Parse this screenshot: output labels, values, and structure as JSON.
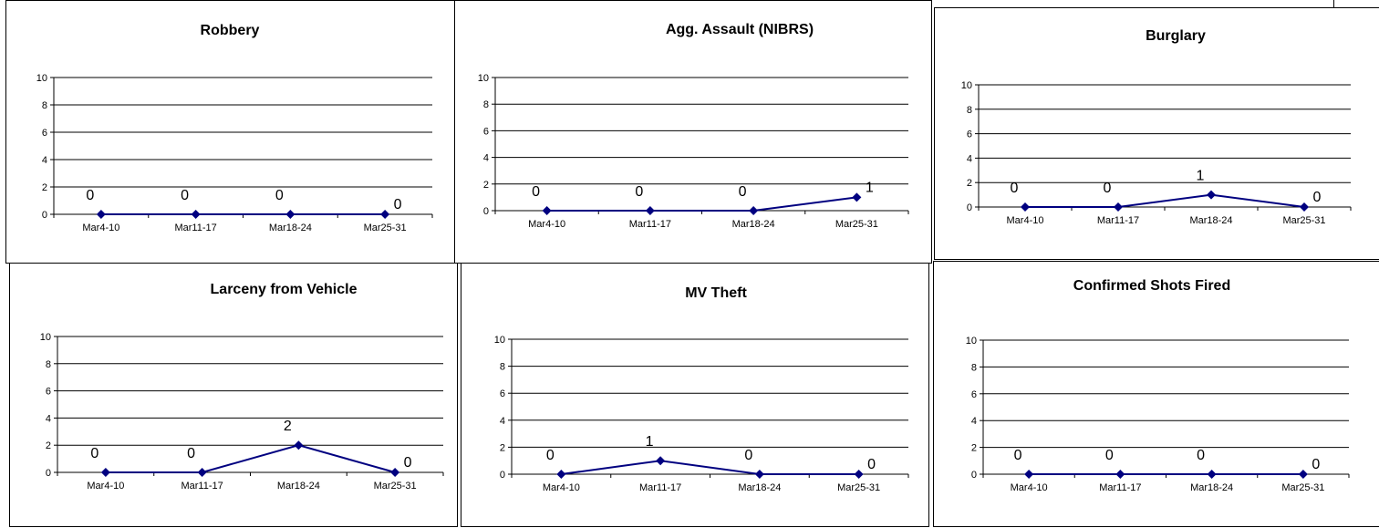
{
  "chart_data": [
    {
      "type": "line",
      "title": "Robbery",
      "categories": [
        "Mar4-10",
        "Mar11-17",
        "Mar18-24",
        "Mar25-31"
      ],
      "values": [
        0,
        0,
        0,
        0
      ],
      "ylim": [
        0,
        10
      ],
      "yticks": [
        0,
        2,
        4,
        6,
        8,
        10
      ],
      "grid": true,
      "color": "#000080"
    },
    {
      "type": "line",
      "title": "Agg. Assault (NIBRS)",
      "categories": [
        "Mar4-10",
        "Mar11-17",
        "Mar18-24",
        "Mar25-31"
      ],
      "values": [
        0,
        0,
        0,
        1
      ],
      "ylim": [
        0,
        10
      ],
      "yticks": [
        0,
        2,
        4,
        6,
        8,
        10
      ],
      "grid": true,
      "color": "#000080"
    },
    {
      "type": "line",
      "title": "Burglary",
      "categories": [
        "Mar4-10",
        "Mar11-17",
        "Mar18-24",
        "Mar25-31"
      ],
      "values": [
        0,
        0,
        1,
        0
      ],
      "ylim": [
        0,
        10
      ],
      "yticks": [
        0,
        2,
        4,
        6,
        8,
        10
      ],
      "grid": true,
      "color": "#000080"
    },
    {
      "type": "line",
      "title": "Larceny from Vehicle",
      "categories": [
        "Mar4-10",
        "Mar11-17",
        "Mar18-24",
        "Mar25-31"
      ],
      "values": [
        0,
        0,
        2,
        0
      ],
      "ylim": [
        0,
        10
      ],
      "yticks": [
        0,
        2,
        4,
        6,
        8,
        10
      ],
      "grid": true,
      "color": "#000080"
    },
    {
      "type": "line",
      "title": "MV Theft",
      "categories": [
        "Mar4-10",
        "Mar11-17",
        "Mar18-24",
        "Mar25-31"
      ],
      "values": [
        0,
        1,
        0,
        0
      ],
      "ylim": [
        0,
        10
      ],
      "yticks": [
        0,
        2,
        4,
        6,
        8,
        10
      ],
      "grid": true,
      "color": "#000080"
    },
    {
      "type": "line",
      "title": "Confirmed Shots Fired",
      "categories": [
        "Mar4-10",
        "Mar11-17",
        "Mar18-24",
        "Mar25-31"
      ],
      "values": [
        0,
        0,
        0,
        0
      ],
      "ylim": [
        0,
        10
      ],
      "yticks": [
        0,
        2,
        4,
        6,
        8,
        10
      ],
      "grid": true,
      "color": "#000080"
    }
  ]
}
